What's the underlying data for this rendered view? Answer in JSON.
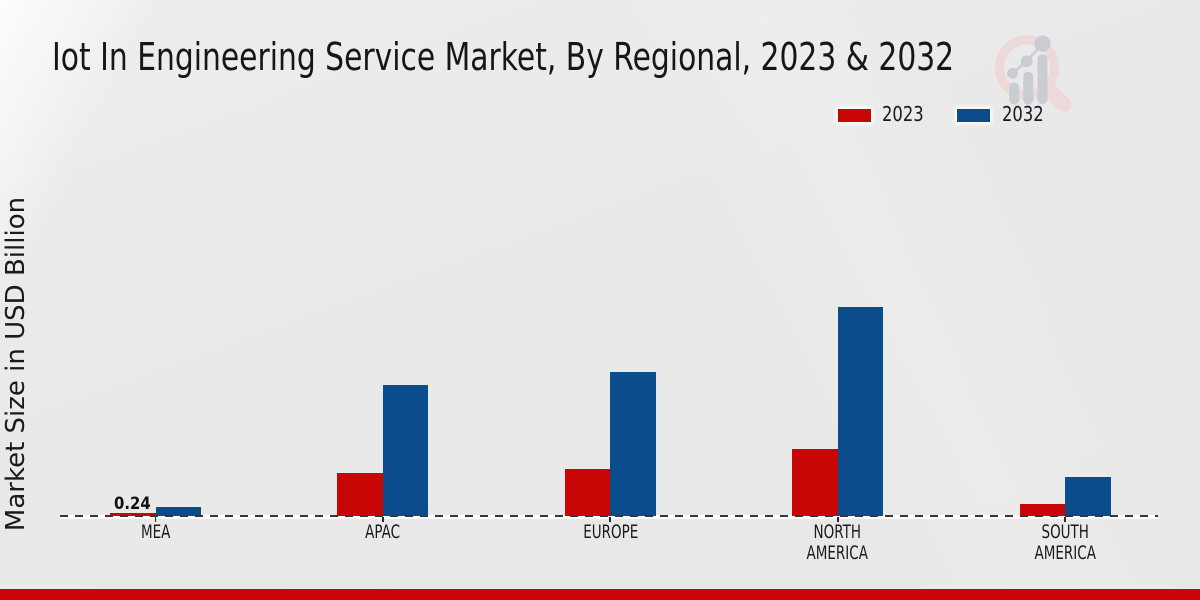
{
  "title": "Iot In Engineering Service Market, By Regional, 2023 & 2032",
  "ylabel": "Market Size in USD Billion",
  "legend": {
    "items": [
      {
        "label": "2023",
        "color": "#c90606"
      },
      {
        "label": "2032",
        "color": "#0b4c8c"
      }
    ]
  },
  "branding": {
    "logo": "market-research-magnifier-growth-logo"
  },
  "footer": {
    "color": "#c90606"
  },
  "chart_data": {
    "type": "bar",
    "title": "Iot In Engineering Service Market, By Regional, 2023 & 2032",
    "xlabel": "",
    "ylabel": "Market Size in USD Billion",
    "unit": "USD Billion",
    "categories": [
      "MEA",
      "APAC",
      "EUROPE",
      "NORTH AMERICA",
      "SOUTH AMERICA"
    ],
    "series": [
      {
        "name": "2023",
        "color": "#c90606",
        "values": [
          0.24,
          3.2,
          3.5,
          5.0,
          0.9
        ]
      },
      {
        "name": "2032",
        "color": "#0b4c8c",
        "values": [
          0.7,
          9.8,
          10.8,
          15.7,
          2.9
        ]
      }
    ],
    "data_labels": [
      {
        "series": "2023",
        "category": "MEA",
        "text": "0.24"
      }
    ],
    "baseline": {
      "style": "dashed",
      "color": "#373737"
    },
    "legend_position": "upper right",
    "grid": false,
    "ylim": [
      0,
      20
    ]
  }
}
